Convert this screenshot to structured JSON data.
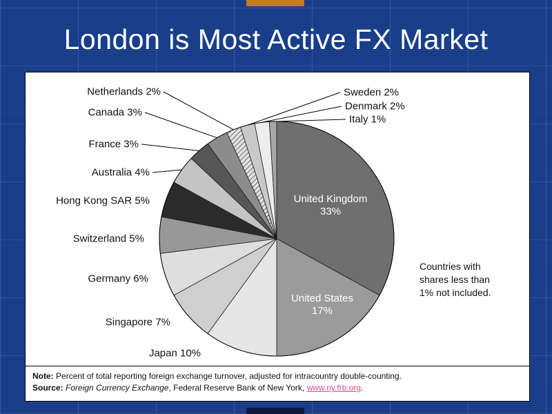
{
  "slide": {
    "title": "London is Most Active FX Market"
  },
  "chart_data": {
    "type": "pie",
    "start_angle_deg": 0,
    "direction": "clockwise",
    "value_suffix": "%",
    "slices": [
      {
        "label": "United Kingdom",
        "value": 33
      },
      {
        "label": "United States",
        "value": 17
      },
      {
        "label": "Japan",
        "value": 10
      },
      {
        "label": "Singapore",
        "value": 7
      },
      {
        "label": "Germany",
        "value": 6
      },
      {
        "label": "Switzerland",
        "value": 5
      },
      {
        "label": "Hong Kong SAR",
        "value": 5
      },
      {
        "label": "Australia",
        "value": 4
      },
      {
        "label": "France",
        "value": 3
      },
      {
        "label": "Canada",
        "value": 3
      },
      {
        "label": "Netherlands",
        "value": 2
      },
      {
        "label": "Sweden",
        "value": 2
      },
      {
        "label": "Denmark",
        "value": 2
      },
      {
        "label": "Italy",
        "value": 1
      }
    ],
    "colors": [
      "#6f6f6f",
      "#9b9b9b",
      "#e6e6e6",
      "#cfcfcf",
      "#dedede",
      "#989898",
      "#2b2b2b",
      "#c4c4c4",
      "#565656",
      "#8c8c8c",
      "diagonal-hatch",
      "#c9c9c9",
      "#ededed",
      "#a6a6a6"
    ],
    "annotation": "Countries with shares less than 1% not included."
  },
  "footer": {
    "note_label": "Note:",
    "note_text": "Percent of total reporting foreign exchange turnover, adjusted for intracountry double-counting.",
    "source_label": "Source:",
    "source_work": "Foreign Currency Exchange",
    "source_rest": ", Federal Reserve Bank of New York, ",
    "source_link": "www.ny.frb.org",
    "source_suffix": ".",
    "link_color": "#e8468c"
  }
}
